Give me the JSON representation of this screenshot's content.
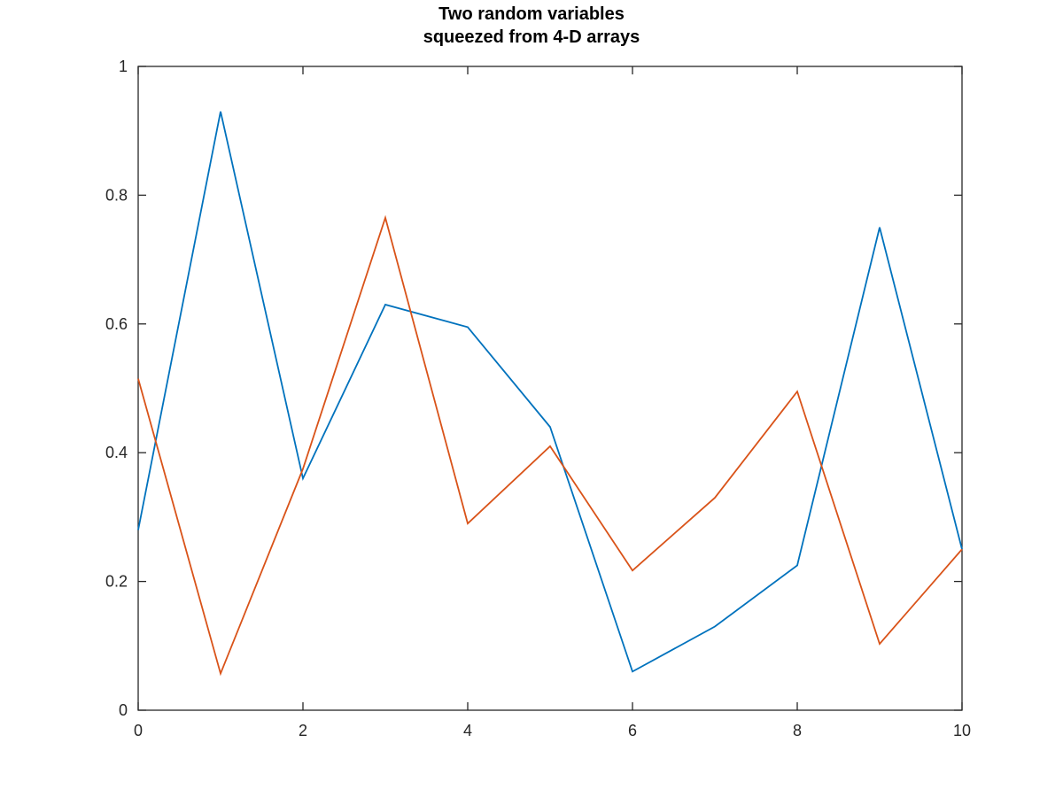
{
  "chart_data": {
    "type": "line",
    "title": [
      "Two random variables",
      "squeezed from 4-D arrays"
    ],
    "xlabel": "",
    "ylabel": "",
    "xlim": [
      0,
      10
    ],
    "ylim": [
      0,
      1
    ],
    "xticks": [
      0,
      2,
      4,
      6,
      8,
      10
    ],
    "yticks": [
      0,
      0.2,
      0.4,
      0.6,
      0.8,
      1
    ],
    "xtick_labels": [
      "0",
      "2",
      "4",
      "6",
      "8",
      "10"
    ],
    "ytick_labels": [
      "0",
      "0.2",
      "0.4",
      "0.6",
      "0.8",
      "1"
    ],
    "grid": false,
    "legend": null,
    "x": [
      0,
      1,
      2,
      3,
      4,
      5,
      6,
      7,
      8,
      9,
      10
    ],
    "series": [
      {
        "color": "#0072bd",
        "values": [
          0.28,
          0.93,
          0.36,
          0.63,
          0.595,
          0.44,
          0.06,
          0.13,
          0.225,
          0.75,
          0.25
        ]
      },
      {
        "color": "#d95319",
        "values": [
          0.515,
          0.057,
          0.375,
          0.765,
          0.29,
          0.41,
          0.217,
          0.33,
          0.495,
          0.103,
          0.25
        ]
      }
    ]
  }
}
